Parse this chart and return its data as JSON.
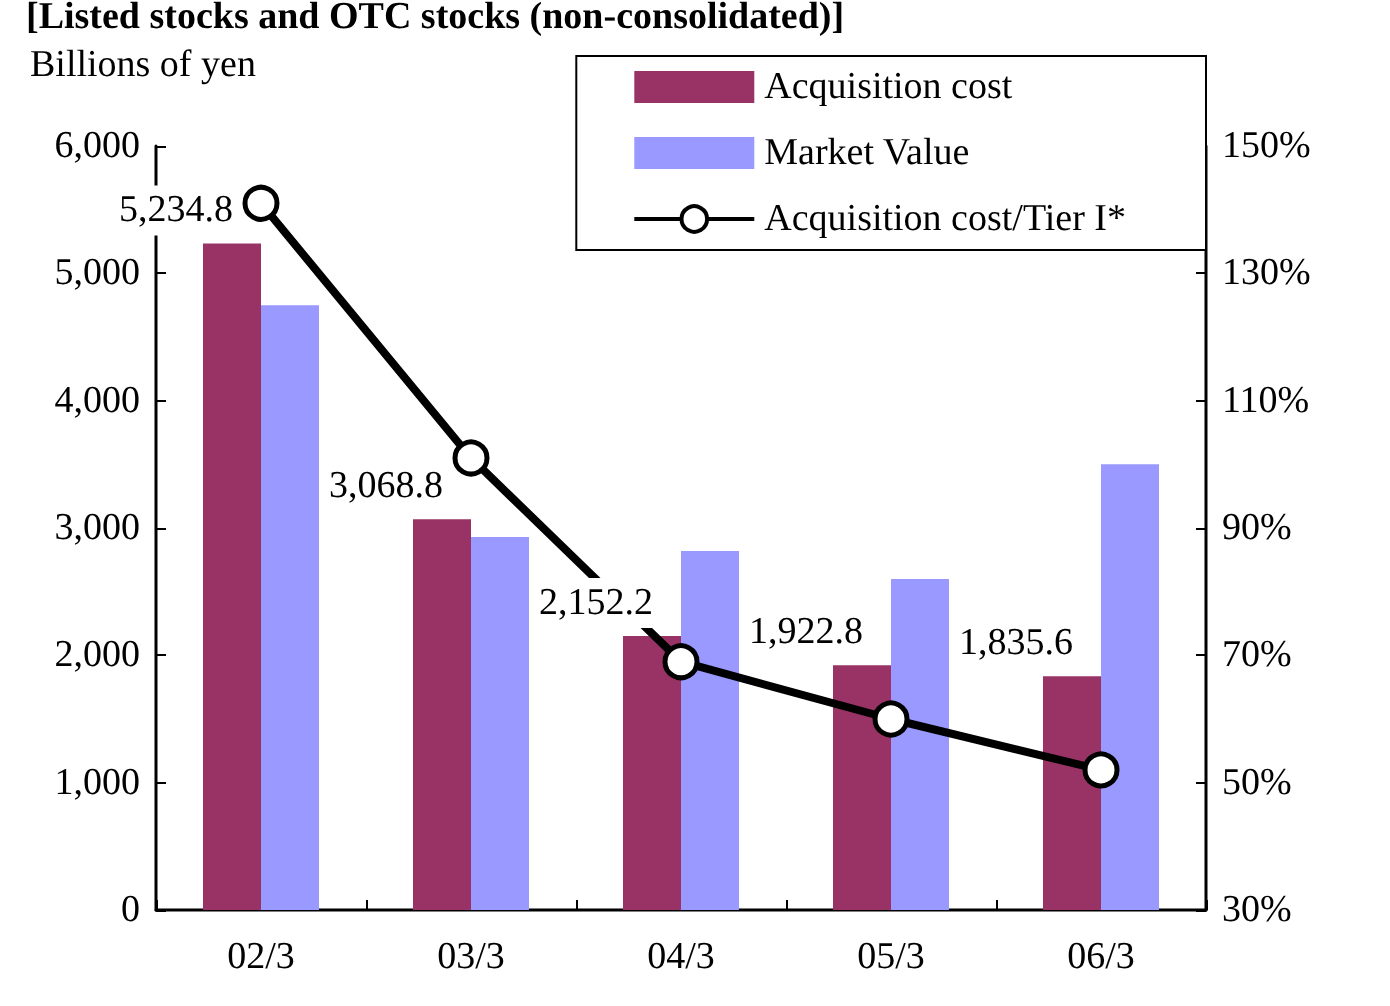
{
  "chart_data": {
    "type": "bar",
    "title": "[Listed stocks and OTC stocks (non-consolidated)]",
    "ylabel": "Billions of yen",
    "categories": [
      "02/3",
      "03/3",
      "04/3",
      "05/3",
      "06/3"
    ],
    "series": [
      {
        "name": "Acquisition cost",
        "color": "#993366",
        "values": [
          5234.8,
          3068.8,
          2152.2,
          1922.8,
          1835.6
        ],
        "value_labels": [
          "5,234.8",
          "3,068.8",
          "2,152.2",
          "1,922.8",
          "1,835.6"
        ]
      },
      {
        "name": "Market Value",
        "color": "#9999ff",
        "values": [
          4750,
          2930,
          2820,
          2600,
          3500
        ]
      },
      {
        "name": "Acquisition cost/Tier I*",
        "type": "line",
        "axis": "y2",
        "color": "#000000",
        "values": [
          141,
          101,
          69,
          60,
          52
        ]
      }
    ],
    "ylim": [
      0,
      6000
    ],
    "yticks": [
      0,
      {
        "value": 1000,
        "label": "1,000"
      },
      {
        "value": 2000,
        "label": "2,000"
      },
      {
        "value": 3000,
        "label": "3,000"
      },
      {
        "value": 4000,
        "label": "4,000"
      },
      {
        "value": 5000,
        "label": "5,000"
      },
      {
        "value": 6000,
        "label": "6,000"
      }
    ],
    "y2lim": [
      30,
      150
    ],
    "y2ticks": [
      {
        "value": 30,
        "label": "30%"
      },
      {
        "value": 50,
        "label": "50%"
      },
      {
        "value": 70,
        "label": "70%"
      },
      {
        "value": 90,
        "label": "90%"
      },
      {
        "value": 110,
        "label": "110%"
      },
      {
        "value": 130,
        "label": "130%"
      },
      {
        "value": 150,
        "label": "150%"
      }
    ],
    "legend": "top right",
    "marker": "circle",
    "line_style": "solid",
    "grid": false
  }
}
